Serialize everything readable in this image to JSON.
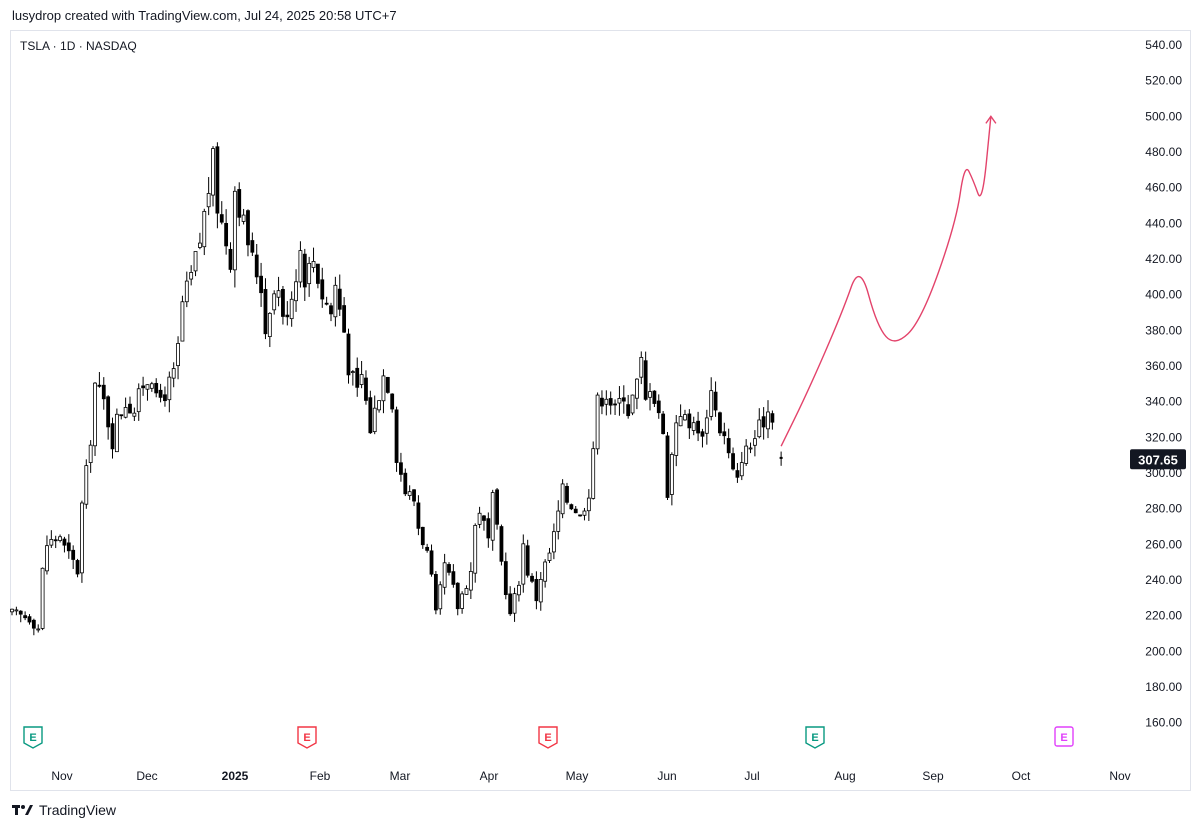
{
  "header": {
    "text": "lusydrop created with TradingView.com, Jul 24, 2025 20:58 UTC+7"
  },
  "symbol_info": "TSLA · 1D · NASDAQ",
  "footer": {
    "brand": "TradingView"
  },
  "colors": {
    "candle": "#000000",
    "annotation": "#e3436b",
    "price_tag_bg": "#131722",
    "earnings_past": "#089981",
    "earnings_negative": "#f23645",
    "earnings_future": "#e040fb"
  },
  "chart_data": {
    "type": "candlestick",
    "symbol": "TSLA",
    "interval": "1D",
    "exchange": "NASDAQ",
    "last_price": "307.65",
    "ylim": [
      150,
      550
    ],
    "y_ticks": [
      "540.00",
      "520.00",
      "500.00",
      "480.00",
      "460.00",
      "440.00",
      "420.00",
      "400.00",
      "380.00",
      "360.00",
      "340.00",
      "320.00",
      "300.00",
      "280.00",
      "260.00",
      "240.00",
      "220.00",
      "200.00",
      "180.00",
      "160.00"
    ],
    "x_ticks": [
      {
        "label": "Nov",
        "bold": false
      },
      {
        "label": "Dec",
        "bold": false
      },
      {
        "label": "2025",
        "bold": true
      },
      {
        "label": "Feb",
        "bold": false
      },
      {
        "label": "Mar",
        "bold": false
      },
      {
        "label": "Apr",
        "bold": false
      },
      {
        "label": "May",
        "bold": false
      },
      {
        "label": "Jun",
        "bold": false
      },
      {
        "label": "Jul",
        "bold": false
      },
      {
        "label": "Aug",
        "bold": false
      },
      {
        "label": "Sep",
        "bold": false
      },
      {
        "label": "Oct",
        "bold": false
      },
      {
        "label": "Nov",
        "bold": false
      }
    ],
    "close_path": [
      [
        0,
        221
      ],
      [
        4,
        219
      ],
      [
        6,
        213
      ],
      [
        7,
        245
      ],
      [
        8,
        260
      ],
      [
        11,
        265
      ],
      [
        12,
        258
      ],
      [
        14,
        250
      ],
      [
        15,
        245
      ],
      [
        16,
        282
      ],
      [
        17,
        300
      ],
      [
        18,
        320
      ],
      [
        19,
        350
      ],
      [
        21,
        340
      ],
      [
        23,
        318
      ],
      [
        24,
        330
      ],
      [
        26,
        340
      ],
      [
        28,
        335
      ],
      [
        30,
        350
      ],
      [
        32,
        355
      ],
      [
        33,
        340
      ],
      [
        35,
        345
      ],
      [
        37,
        355
      ],
      [
        38,
        370
      ],
      [
        39,
        395
      ],
      [
        41,
        410
      ],
      [
        43,
        430
      ],
      [
        45,
        460
      ],
      [
        46,
        475
      ],
      [
        47,
        450
      ],
      [
        48,
        440
      ],
      [
        50,
        420
      ],
      [
        51,
        460
      ],
      [
        53,
        440
      ],
      [
        55,
        420
      ],
      [
        57,
        405
      ],
      [
        58,
        380
      ],
      [
        59,
        395
      ],
      [
        61,
        405
      ],
      [
        62,
        385
      ],
      [
        64,
        400
      ],
      [
        66,
        425
      ],
      [
        67,
        410
      ],
      [
        69,
        420
      ],
      [
        71,
        400
      ],
      [
        73,
        390
      ],
      [
        74,
        405
      ],
      [
        76,
        380
      ],
      [
        77,
        360
      ],
      [
        79,
        345
      ],
      [
        80,
        355
      ],
      [
        82,
        325
      ],
      [
        84,
        345
      ],
      [
        85,
        355
      ],
      [
        86,
        350
      ],
      [
        87,
        340
      ],
      [
        88,
        310
      ],
      [
        90,
        290
      ],
      [
        92,
        285
      ],
      [
        93,
        270
      ],
      [
        95,
        255
      ],
      [
        96,
        240
      ],
      [
        97,
        220
      ],
      [
        99,
        248
      ],
      [
        101,
        235
      ],
      [
        102,
        225
      ],
      [
        103,
        232
      ],
      [
        105,
        245
      ],
      [
        106,
        270
      ],
      [
        107,
        280
      ],
      [
        109,
        262
      ],
      [
        110,
        285
      ],
      [
        112,
        250
      ],
      [
        113,
        235
      ],
      [
        114,
        220
      ],
      [
        116,
        240
      ],
      [
        117,
        260
      ],
      [
        118,
        245
      ],
      [
        120,
        230
      ],
      [
        121,
        242
      ],
      [
        123,
        255
      ],
      [
        124,
        265
      ],
      [
        126,
        290
      ],
      [
        127,
        285
      ],
      [
        129,
        280
      ],
      [
        130,
        275
      ],
      [
        132,
        290
      ],
      [
        133,
        315
      ],
      [
        134,
        340
      ],
      [
        136,
        345
      ],
      [
        138,
        335
      ],
      [
        140,
        345
      ],
      [
        141,
        335
      ],
      [
        143,
        350
      ],
      [
        144,
        362
      ],
      [
        145,
        340
      ],
      [
        146,
        350
      ],
      [
        148,
        335
      ],
      [
        149,
        320
      ],
      [
        150,
        290
      ],
      [
        151,
        310
      ],
      [
        152,
        330
      ],
      [
        153,
        335
      ],
      [
        155,
        325
      ],
      [
        156,
        332
      ],
      [
        157,
        320
      ],
      [
        159,
        330
      ],
      [
        160,
        350
      ],
      [
        161,
        335
      ],
      [
        162,
        325
      ],
      [
        163,
        320
      ],
      [
        164,
        310
      ],
      [
        165,
        300
      ],
      [
        166,
        295
      ],
      [
        167,
        310
      ],
      [
        169,
        315
      ],
      [
        170,
        320
      ],
      [
        171,
        325
      ],
      [
        172,
        330
      ],
      [
        173,
        335
      ],
      [
        174,
        333
      ]
    ],
    "close_path_note_units": "x = trading-day index from first visible session, y = USD",
    "annotation_path": [
      [
        174,
        315
      ],
      [
        180,
        345
      ],
      [
        188,
        390
      ],
      [
        192,
        418
      ],
      [
        196,
        382
      ],
      [
        200,
        371
      ],
      [
        206,
        385
      ],
      [
        214,
        440
      ],
      [
        216,
        474
      ],
      [
        218,
        464
      ],
      [
        220,
        450
      ],
      [
        222,
        500
      ]
    ],
    "earnings_markers": [
      {
        "label": "E",
        "index": 4,
        "kind": "past"
      },
      {
        "label": "E",
        "index": 65,
        "kind": "negative"
      },
      {
        "label": "E",
        "index": 113,
        "kind": "negative"
      },
      {
        "label": "E",
        "index": 171,
        "kind": "past"
      },
      {
        "label": "E",
        "index": 226,
        "kind": "future"
      }
    ]
  }
}
